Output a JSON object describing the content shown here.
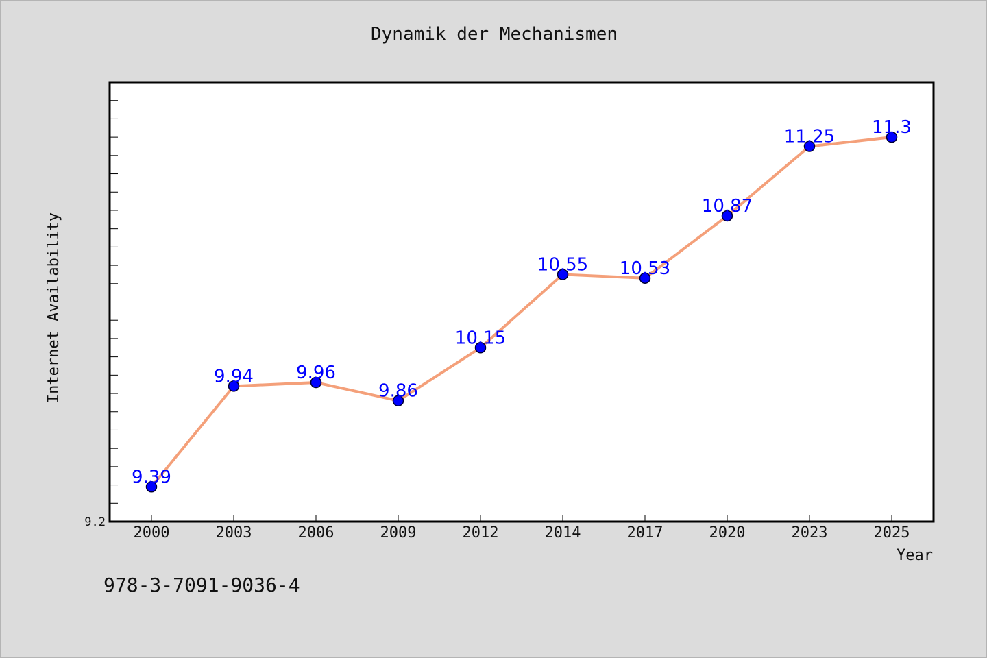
{
  "title": "Dynamik der Mechanismen",
  "isbn": "978-3-7091-9036-4",
  "chart_data": {
    "type": "line",
    "title": "Dynamik der Mechanismen",
    "xlabel": "Year",
    "ylabel": "Internet Availability",
    "categories": [
      "2000",
      "2003",
      "2006",
      "2009",
      "2012",
      "2014",
      "2017",
      "2020",
      "2023",
      "2025"
    ],
    "series": [
      {
        "values": [
          9.39,
          9.94,
          9.96,
          9.86,
          10.15,
          10.55,
          10.53,
          10.87,
          11.25,
          11.3
        ],
        "labels": [
          "9.39",
          "9.94",
          "9.96",
          "9.86",
          "10.15",
          "10.55",
          "10.53",
          "10.87",
          "11.25",
          "11.3"
        ],
        "line_color": "#f4a07a",
        "marker_color": "#0000ff"
      }
    ],
    "ylim": [
      9.2,
      11.6
    ],
    "y_tick_labels": [
      "9.2"
    ],
    "grid": false,
    "legend": "none"
  }
}
